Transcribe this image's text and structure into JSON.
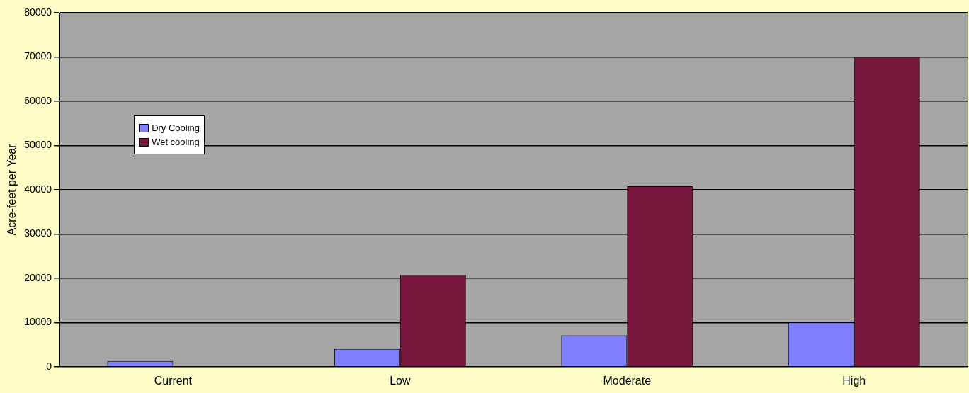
{
  "chart_data": {
    "type": "bar",
    "ylabel": "Acre-feet per Year",
    "categories": [
      "Current",
      "Low",
      "Moderate",
      "High"
    ],
    "series": [
      {
        "name": "Dry Cooling",
        "color": "#7f7fff",
        "values": [
          1300,
          4000,
          7100,
          10000
        ]
      },
      {
        "name": "Wet cooling",
        "color": "#76163d",
        "values": [
          0,
          20700,
          40800,
          70000
        ]
      }
    ],
    "ylim": [
      0,
      80000
    ],
    "yticks": [
      0,
      10000,
      20000,
      30000,
      40000,
      50000,
      60000,
      70000,
      80000
    ],
    "grid": "y",
    "legend": "top left"
  }
}
